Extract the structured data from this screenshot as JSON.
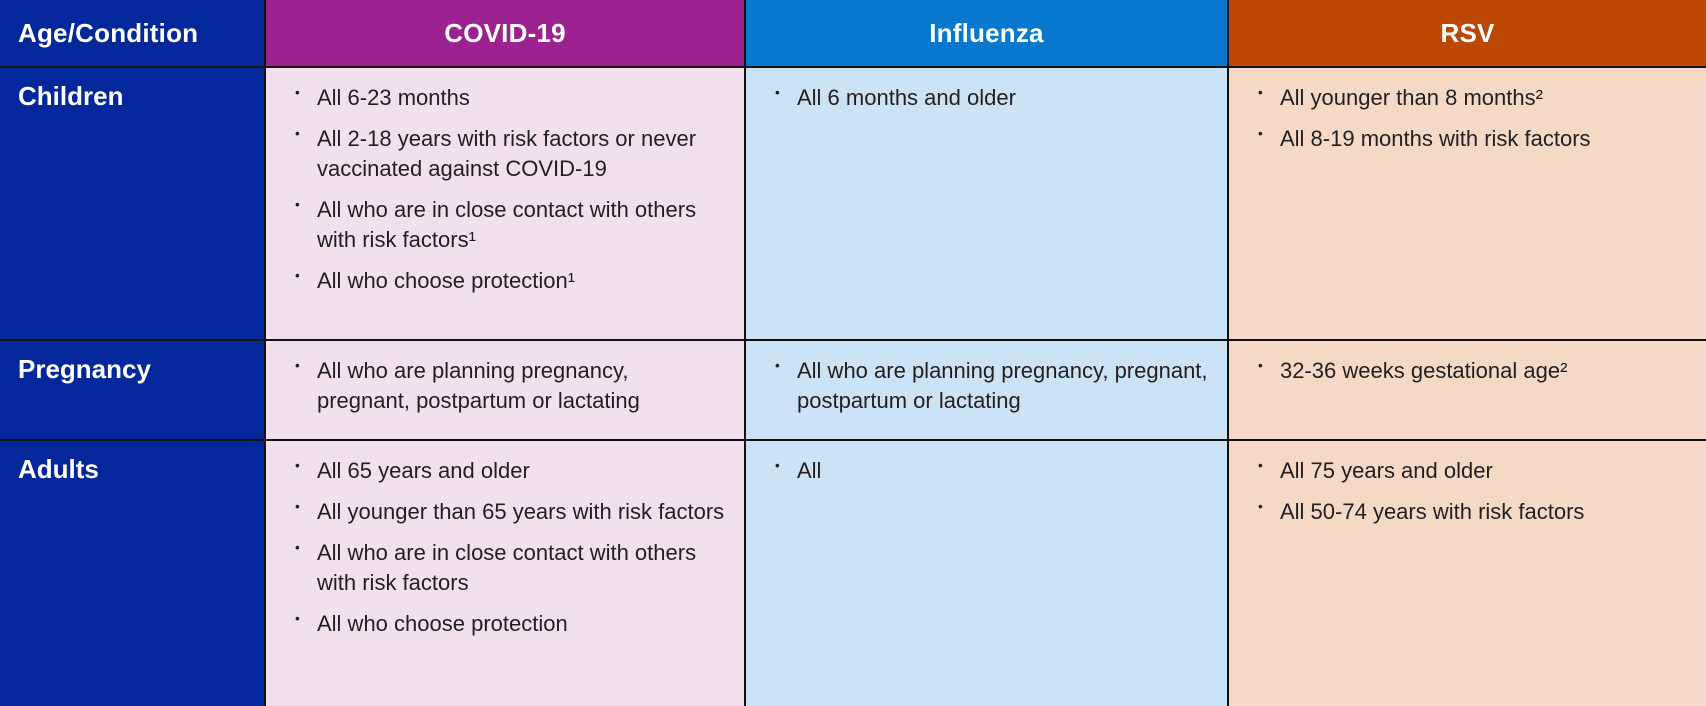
{
  "colors": {
    "navy": "#04289B",
    "purple": "#9C2191",
    "blue": "#0878CE",
    "rust": "#BC4802",
    "pink-bg": "#F2E0EF",
    "lightblue-bg": "#CCE2F5",
    "peach-bg": "#F4DAC6",
    "border": "#121212",
    "text-dark": "#231F20",
    "header-text": "#FFFFFF"
  },
  "table": {
    "columns": [
      {
        "key": "age",
        "label": "Age/Condition"
      },
      {
        "key": "covid",
        "label": "COVID-19"
      },
      {
        "key": "influenza",
        "label": "Influenza"
      },
      {
        "key": "rsv",
        "label": "RSV"
      }
    ],
    "rows": [
      {
        "label": "Children",
        "covid": [
          "All 6-23 months",
          "All 2-18 years with risk factors or never vaccinated against COVID-19",
          "All who are in close contact with others with risk factors¹",
          "All who choose protection¹"
        ],
        "influenza": [
          "All 6 months and older"
        ],
        "rsv": [
          "All younger than 8 months²",
          "All 8-19 months with risk factors"
        ]
      },
      {
        "label": "Pregnancy",
        "covid": [
          "All who are planning pregnancy, pregnant, postpartum or lactating"
        ],
        "influenza": [
          "All who are planning pregnancy, pregnant, postpartum or lactating"
        ],
        "rsv": [
          "32-36 weeks gestational age²"
        ]
      },
      {
        "label": "Adults",
        "covid": [
          "All 65 years and older",
          "All younger than 65 years with risk factors",
          "All who are in close contact with others with risk factors",
          "All who choose protection"
        ],
        "influenza": [
          "All"
        ],
        "rsv": [
          "All 75 years and older",
          "All 50-74 years with risk factors"
        ]
      }
    ]
  }
}
